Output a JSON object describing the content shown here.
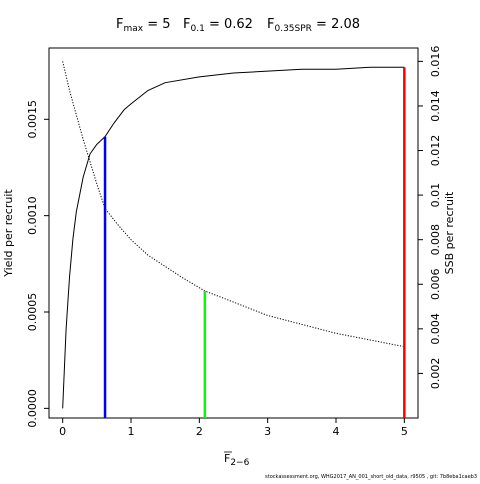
{
  "chart_data": {
    "type": "line",
    "title": {
      "fmax": {
        "main": "F",
        "sub": "max",
        "rest": " = 5"
      },
      "f01": {
        "main": "F",
        "sub": "0.1",
        "rest": " = 0.62"
      },
      "fspr": {
        "main": "F",
        "sub": "0.35SPR",
        "rest": " = 2.08"
      }
    },
    "xlabel": {
      "main": "F",
      "sub": "2−6"
    },
    "ylabel_left": "Yield per recruit",
    "ylabel_right": "SSB per recruit",
    "xlim": [
      -0.2,
      5.2
    ],
    "ylim_left": [
      -5e-05,
      0.00187
    ],
    "ylim_right": [
      0.0,
      0.0166
    ],
    "x_ticks": [
      0,
      1,
      2,
      3,
      4,
      5
    ],
    "x_tick_labels": [
      "0",
      "1",
      "2",
      "3",
      "4",
      "5"
    ],
    "y_left_ticks": [
      0.0,
      0.0005,
      0.001,
      0.0015
    ],
    "y_left_tick_labels": [
      "0.0000",
      "0.0005",
      "0.0010",
      "0.0015"
    ],
    "y_right_ticks": [
      0.002,
      0.004,
      0.006,
      0.008,
      0.01,
      0.012,
      0.014,
      0.016
    ],
    "y_right_tick_labels": [
      "0.002",
      "0.004",
      "0.006",
      "0.008",
      "0.01",
      "0.012",
      "0.014",
      "0.016"
    ],
    "grid": false,
    "series": [
      {
        "style": "solid",
        "axis": "left",
        "x": [
          0,
          0.05,
          0.1,
          0.15,
          0.2,
          0.3,
          0.4,
          0.5,
          0.62,
          0.75,
          0.9,
          1.0,
          1.25,
          1.5,
          2.0,
          2.5,
          3.0,
          3.5,
          4.0,
          4.5,
          5.0
        ],
        "y": [
          0.0,
          0.00041,
          0.00068,
          0.00088,
          0.00102,
          0.0012,
          0.00132,
          0.00137,
          0.00141,
          0.00148,
          0.00155,
          0.00158,
          0.00165,
          0.00169,
          0.00172,
          0.00174,
          0.00175,
          0.00176,
          0.00176,
          0.00177,
          0.00177
        ]
      },
      {
        "style": "dotted",
        "axis": "right",
        "x": [
          0,
          0.1,
          0.2,
          0.3,
          0.4,
          0.5,
          0.62,
          0.8,
          1.0,
          1.25,
          1.5,
          1.75,
          2.08,
          2.5,
          3.0,
          3.5,
          4.0,
          4.5,
          5.0
        ],
        "y": [
          0.016,
          0.0147,
          0.0136,
          0.0125,
          0.0115,
          0.0105,
          0.0094,
          0.0087,
          0.008,
          0.0073,
          0.0068,
          0.0063,
          0.0057,
          0.0052,
          0.0046,
          0.0042,
          0.0038,
          0.0035,
          0.0032
        ]
      }
    ],
    "reference_lines": [
      {
        "x": 0.62,
        "y_top": 0.00141,
        "axis": "left",
        "color": "#0000ff"
      },
      {
        "x": 2.08,
        "y_top": 0.0057,
        "axis": "right",
        "color": "#00ff00"
      },
      {
        "x": 5.0,
        "y_top": 0.00177,
        "axis": "left",
        "color": "#ff0000"
      }
    ],
    "footnote": "stockassessment.org, WHG2017_AN_001_short_old_data, r9505 , git: 7b8eba1caeb3"
  }
}
